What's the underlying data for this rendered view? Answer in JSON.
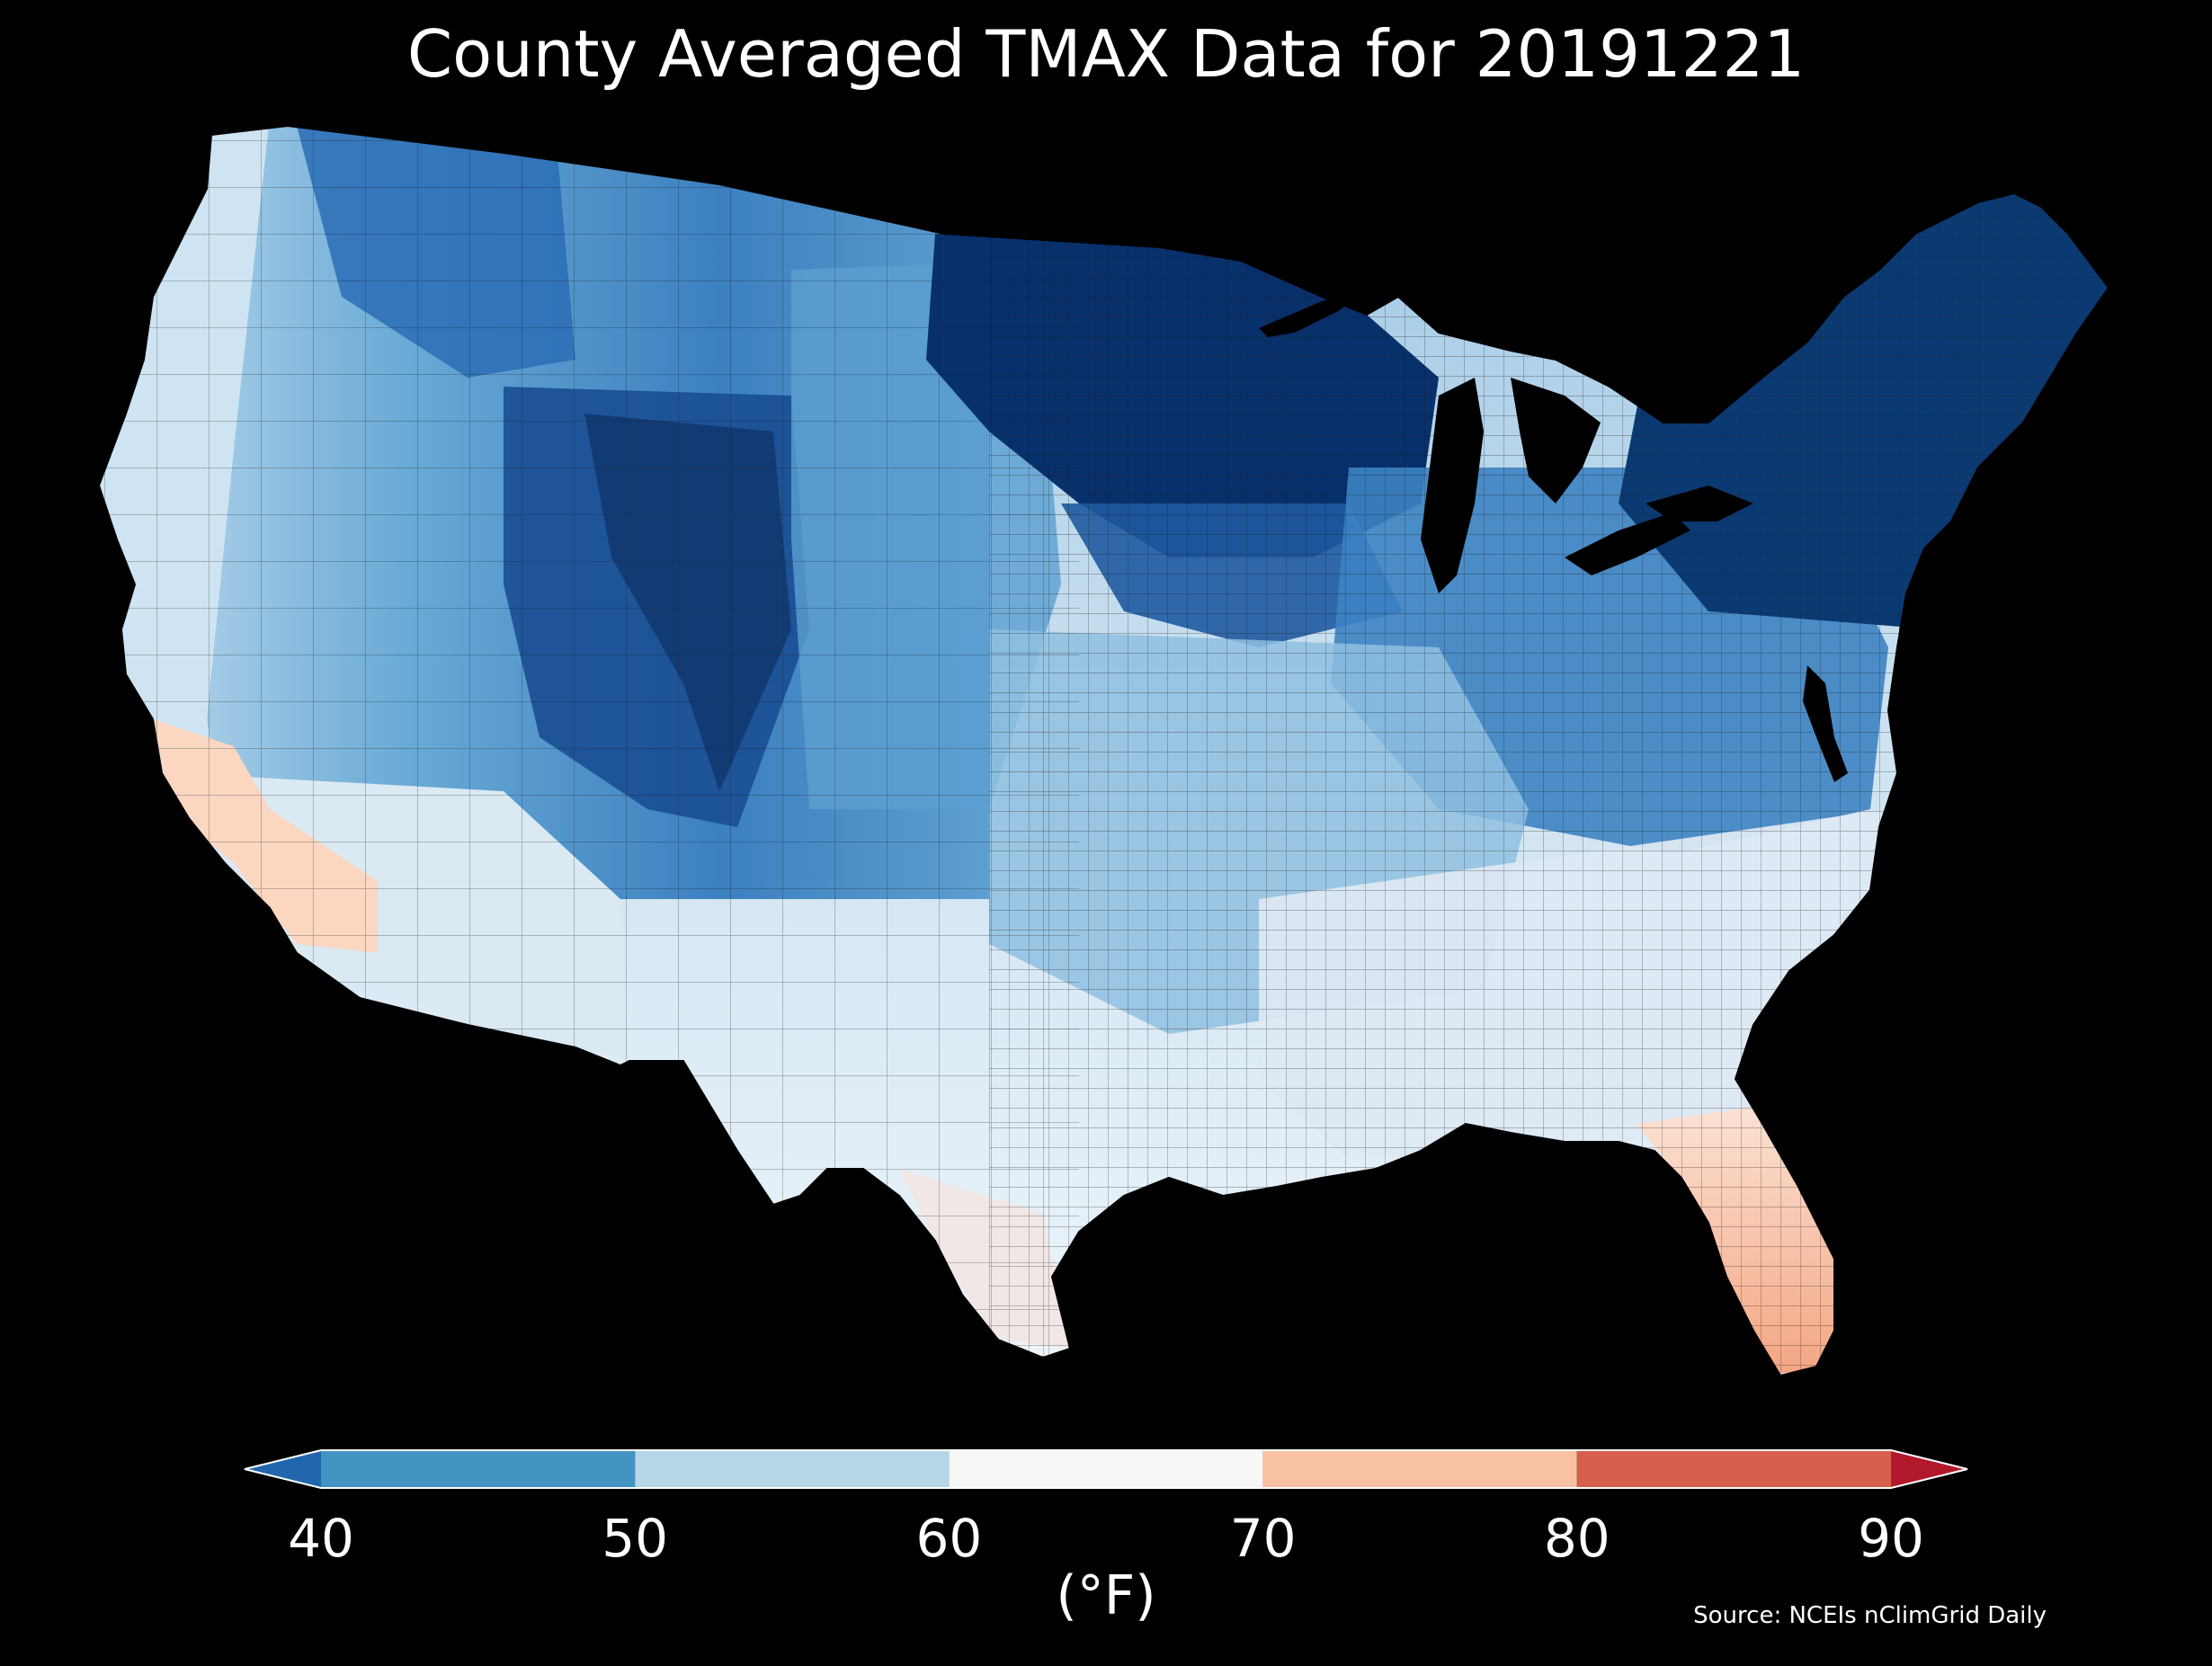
{
  "title": "County Averaged TMAX Data for 20191221",
  "source": "Source: NCEIs nClimGrid Daily",
  "colorbar": {
    "units": "(°F)",
    "ticks": [
      {
        "label": "40",
        "value": 40
      },
      {
        "label": "50",
        "value": 50
      },
      {
        "label": "60",
        "value": 60
      },
      {
        "label": "70",
        "value": 70
      },
      {
        "label": "80",
        "value": 80
      },
      {
        "label": "90",
        "value": 90
      }
    ],
    "bins": [
      {
        "from": 40,
        "to": 50,
        "color": "#4393c3"
      },
      {
        "from": 50,
        "to": 60,
        "color": "#b6d7e8"
      },
      {
        "from": 60,
        "to": 70,
        "color": "#f7f7f7"
      },
      {
        "from": 70,
        "to": 80,
        "color": "#f9c1a4"
      },
      {
        "from": 80,
        "to": 90,
        "color": "#d6604d"
      }
    ],
    "under_color": "#2166ac",
    "over_color": "#b2182b",
    "extend": "both"
  },
  "map": {
    "region": "Contiguous United States counties",
    "background": "#000000",
    "regions_summary": [
      {
        "area": "Upper Midwest / Great Lakes",
        "color": "#08306b"
      },
      {
        "area": "New England / Northeast",
        "color": "#0b3a73"
      },
      {
        "area": "Colorado Rockies",
        "color": "#123a6e"
      },
      {
        "area": "Northern Rockies",
        "color": "#2b6cb0"
      },
      {
        "area": "Great Plains",
        "color": "#6aa7d3"
      },
      {
        "area": "Mid-Atlantic / Ohio Valley",
        "color": "#4a90c8"
      },
      {
        "area": "Southeast",
        "color": "#d5e7f2"
      },
      {
        "area": "Texas / Southwest",
        "color": "#e6f0f7"
      },
      {
        "area": "Southern California",
        "color": "#fbd9c6"
      },
      {
        "area": "Florida",
        "color": "#f6b497"
      }
    ]
  }
}
